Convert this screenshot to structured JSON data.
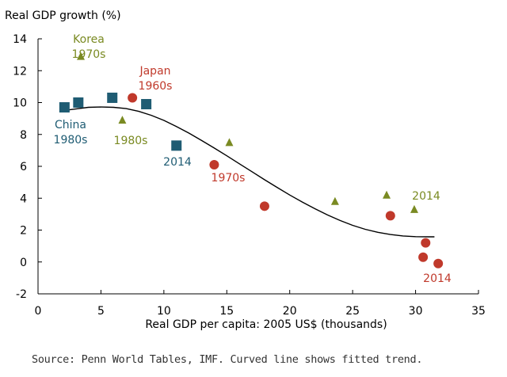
{
  "chart_data": {
    "type": "scatter",
    "ylabel": "Real GDP growth (%)",
    "xlabel": "Real GDP per capita: 2005 US$ (thousands)",
    "xlim": [
      0,
      35
    ],
    "ylim": [
      -2,
      14
    ],
    "xticks": [
      0,
      5,
      10,
      15,
      20,
      25,
      30,
      35
    ],
    "yticks": [
      -2,
      0,
      2,
      4,
      6,
      8,
      10,
      12,
      14
    ],
    "grid": false,
    "colors": {
      "china": "#1f5c73",
      "japan": "#c0392b",
      "korea": "#7a8a22",
      "trend": "#000000",
      "axis": "#000000"
    },
    "series": [
      {
        "id": "china",
        "marker": "square",
        "points": [
          {
            "x": 2.1,
            "y": 9.7
          },
          {
            "x": 3.2,
            "y": 10.0
          },
          {
            "x": 5.9,
            "y": 10.3
          },
          {
            "x": 8.6,
            "y": 9.9
          },
          {
            "x": 11.0,
            "y": 7.3
          }
        ]
      },
      {
        "id": "japan",
        "marker": "circle",
        "points": [
          {
            "x": 7.5,
            "y": 10.3
          },
          {
            "x": 14.0,
            "y": 6.1
          },
          {
            "x": 18.0,
            "y": 3.5
          },
          {
            "x": 28.0,
            "y": 2.9
          },
          {
            "x": 30.8,
            "y": 1.2
          },
          {
            "x": 30.6,
            "y": 0.3
          },
          {
            "x": 31.8,
            "y": -0.1
          }
        ]
      },
      {
        "id": "korea",
        "marker": "triangle",
        "points": [
          {
            "x": 3.4,
            "y": 12.9
          },
          {
            "x": 6.7,
            "y": 8.9
          },
          {
            "x": 15.2,
            "y": 7.5
          },
          {
            "x": 23.6,
            "y": 3.8
          },
          {
            "x": 27.7,
            "y": 4.2
          },
          {
            "x": 29.9,
            "y": 3.3
          }
        ]
      }
    ],
    "trend": {
      "x": [
        2,
        3,
        4,
        5,
        6,
        7,
        8,
        9,
        10,
        11,
        12,
        13,
        14,
        15,
        16,
        17,
        18,
        19,
        20,
        21,
        22,
        23,
        24,
        25,
        26,
        27,
        28,
        29,
        30,
        31,
        31.5
      ],
      "y": [
        9.5,
        9.6,
        9.7,
        9.72,
        9.7,
        9.62,
        9.45,
        9.2,
        8.88,
        8.5,
        8.08,
        7.62,
        7.15,
        6.66,
        6.16,
        5.66,
        5.16,
        4.68,
        4.2,
        3.76,
        3.34,
        2.95,
        2.6,
        2.3,
        2.05,
        1.86,
        1.72,
        1.63,
        1.59,
        1.58,
        1.58
      ]
    },
    "annotations": [
      {
        "lines": [
          "Korea",
          "1970s"
        ],
        "series": "korea"
      },
      {
        "lines": [
          "Japan",
          "1960s"
        ],
        "series": "japan"
      },
      {
        "lines": [
          "China",
          "1980s"
        ],
        "series": "china"
      },
      {
        "lines": [
          "1980s"
        ],
        "series": "korea"
      },
      {
        "lines": [
          "2014"
        ],
        "series": "china"
      },
      {
        "lines": [
          "1970s"
        ],
        "series": "japan"
      },
      {
        "lines": [
          "2014"
        ],
        "series": "korea"
      },
      {
        "lines": [
          "2014"
        ],
        "series": "japan"
      }
    ]
  },
  "source": "Source: Penn World Tables, IMF. Curved line shows fitted trend."
}
